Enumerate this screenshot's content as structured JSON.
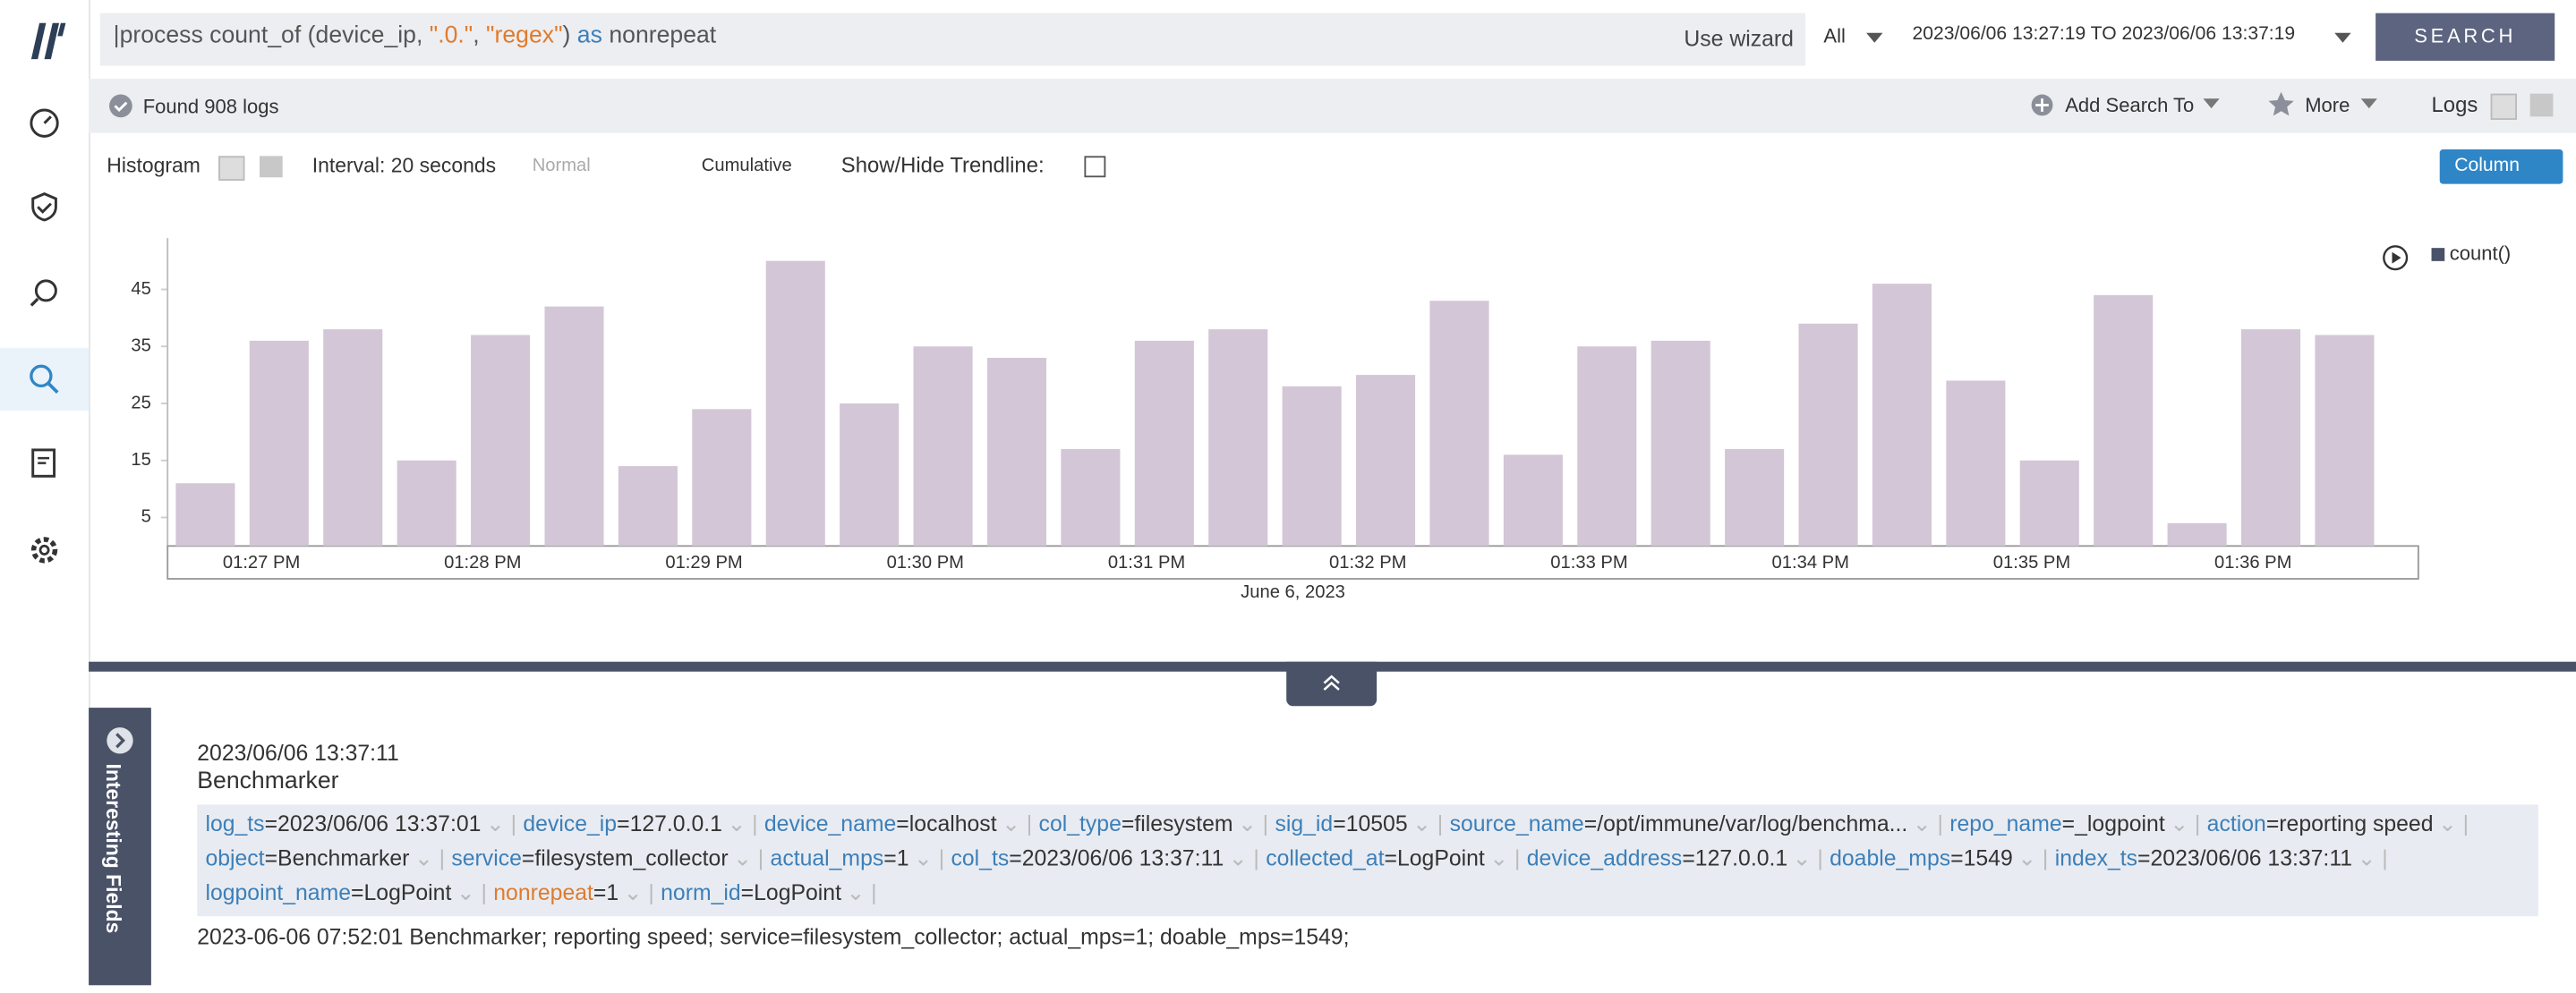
{
  "search": {
    "query": [
      "|process count_of (device_ip, ",
      "\".0.\"",
      ", ",
      "\"regex\"",
      ") ",
      "as",
      " nonrepeat"
    ],
    "wizard": "Use wizard",
    "scope": "All",
    "range": "2023/06/06 13:27:19 TO 2023/06/06 13:37:19",
    "button": "SEARCH"
  },
  "status": {
    "found": "Found 908 logs",
    "add": "Add Search To",
    "more": "More",
    "logs": "Logs"
  },
  "toolbar": {
    "histogram": "Histogram",
    "interval": "Interval: 20 seconds",
    "normal": "Normal",
    "cumulative": "Cumulative",
    "trendline": "Show/Hide Trendline:",
    "column": "Column"
  },
  "chart_data": {
    "type": "bar",
    "values": [
      11,
      36,
      38,
      15,
      37,
      42,
      14,
      24,
      50,
      25,
      35,
      33,
      17,
      36,
      38,
      28,
      30,
      43,
      16,
      35,
      36,
      17,
      39,
      46,
      29,
      15,
      44,
      4,
      38,
      37
    ],
    "color": "#d3c6d6",
    "ylim": [
      0,
      54
    ],
    "yticks": [
      5,
      15,
      25,
      35,
      45
    ],
    "x_tick_labels": [
      "01:27 PM",
      "01:28 PM",
      "01:29 PM",
      "01:30 PM",
      "01:31 PM",
      "01:32 PM",
      "01:33 PM",
      "01:34 PM",
      "01:35 PM",
      "01:36 PM"
    ],
    "xlabel": "June 6, 2023",
    "legend": "count()"
  },
  "log": {
    "tab": "Interesting Fields",
    "time": "2023/06/06 13:37:11",
    "source": "Benchmarker",
    "fields": [
      [
        "log_ts",
        "2023/06/06 13:37:01"
      ],
      [
        "device_ip",
        "127.0.0.1"
      ],
      [
        "device_name",
        "localhost"
      ],
      [
        "col_type",
        "filesystem"
      ],
      [
        "sig_id",
        "10505"
      ],
      [
        "source_name",
        "/opt/immune/var/log/benchma..."
      ],
      [
        "repo_name",
        "_logpoint"
      ],
      [
        "action",
        "reporting speed"
      ],
      [
        "object",
        "Benchmarker"
      ],
      [
        "service",
        "filesystem_collector"
      ],
      [
        "actual_mps",
        "1"
      ],
      [
        "col_ts",
        "2023/06/06 13:37:11"
      ],
      [
        "collected_at",
        "LogPoint"
      ],
      [
        "device_address",
        "127.0.0.1"
      ],
      [
        "doable_mps",
        "1549"
      ],
      [
        "index_ts",
        "2023/06/06 13:37:11"
      ],
      [
        "logpoint_name",
        "LogPoint"
      ],
      [
        "nonrepeat",
        "1"
      ],
      [
        "norm_id",
        "LogPoint"
      ]
    ],
    "message": "2023-06-06 07:52:01 Benchmarker; reporting speed; service=filesystem_collector; actual_mps=1; doable_mps=1549;"
  }
}
